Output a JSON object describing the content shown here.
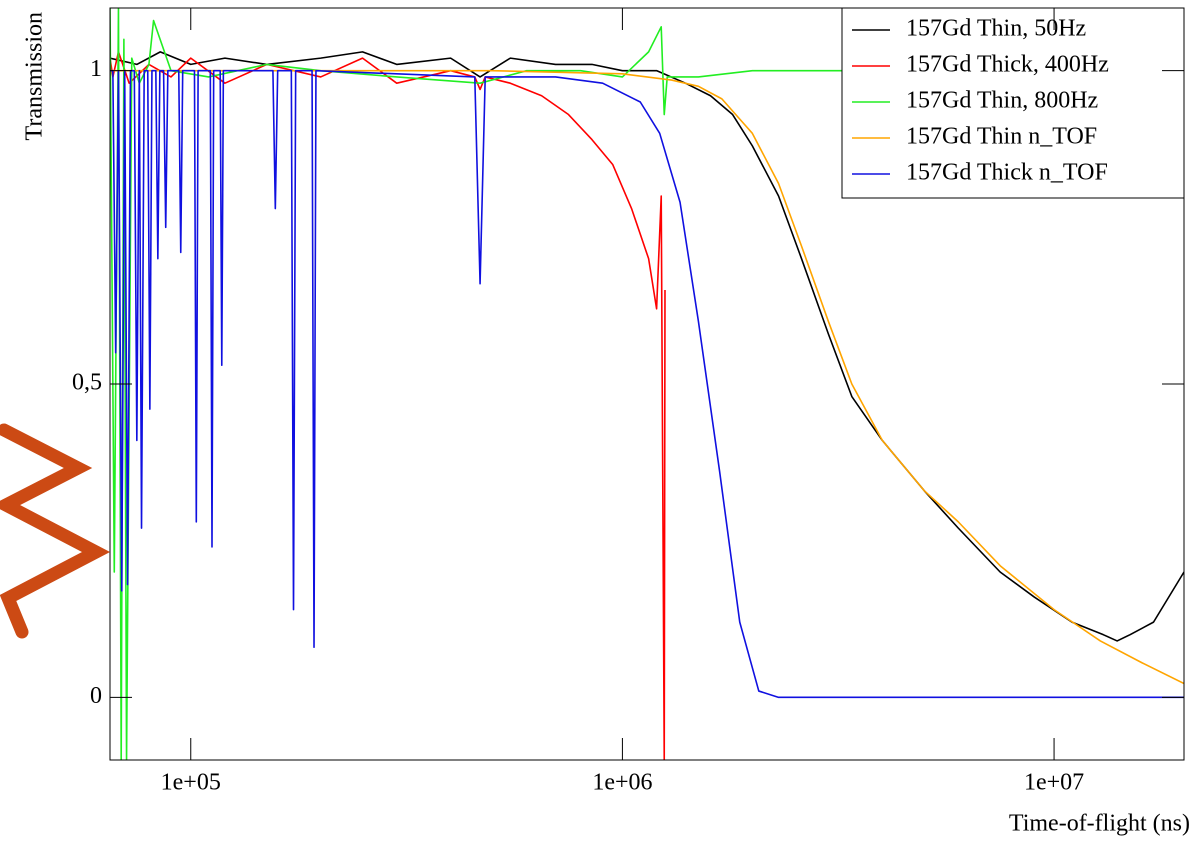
{
  "chart_data": {
    "type": "line",
    "x_label": "Time-of-flight (ns)",
    "y_label": "Transmission",
    "xscale": "log",
    "xlim": [
      65000,
      20000000
    ],
    "ylim": [
      -0.1,
      1.1
    ],
    "xticks": [
      {
        "value": 100000,
        "label": "1e+05"
      },
      {
        "value": 1000000,
        "label": "1e+06"
      },
      {
        "value": 10000000,
        "label": "1e+07"
      }
    ],
    "yticks": [
      0,
      {
        "value": 0.5,
        "label": "0,5"
      },
      1
    ],
    "grid": false,
    "legend": "top-right",
    "series": [
      {
        "name": "157Gd Thin, 50Hz",
        "color": "#000000",
        "x": [
          65000,
          75000,
          85000,
          100000,
          120000,
          150000,
          200000,
          250000,
          300000,
          400000,
          468000,
          550000,
          700000,
          850000,
          1000000,
          1200000,
          1400000,
          1600000,
          1800000,
          2000000,
          2300000,
          2600000,
          3000000,
          3400000,
          4000000,
          5000000,
          6000000,
          7500000,
          9000000,
          11000000,
          13000000,
          14000000,
          15000000,
          17000000,
          20000000
        ],
        "values": [
          1.02,
          1.01,
          1.03,
          1.01,
          1.02,
          1.01,
          1.02,
          1.03,
          1.01,
          1.02,
          0.99,
          1.02,
          1.01,
          1.01,
          1.0,
          1.0,
          0.98,
          0.96,
          0.93,
          0.88,
          0.8,
          0.7,
          0.58,
          0.48,
          0.41,
          0.33,
          0.27,
          0.2,
          0.16,
          0.12,
          0.1,
          0.09,
          0.1,
          0.12,
          0.2
        ]
      },
      {
        "name": "157Gd Thick, 400Hz",
        "color": "#ff0000",
        "x": [
          65000,
          66000,
          68000,
          72000,
          80000,
          90000,
          100000,
          120000,
          150000,
          200000,
          250000,
          300000,
          400000,
          455000,
          468000,
          481000,
          550000,
          650000,
          750000,
          850000,
          950000,
          1050000,
          1150000,
          1200000,
          1230000,
          1250000,
          1255000
        ],
        "values": [
          1.02,
          0.99,
          1.03,
          0.98,
          1.01,
          0.99,
          1.02,
          0.98,
          1.01,
          0.99,
          1.02,
          0.98,
          1.0,
          0.99,
          0.97,
          0.99,
          0.98,
          0.96,
          0.93,
          0.89,
          0.85,
          0.78,
          0.7,
          0.62,
          0.8,
          -0.1,
          0.65
        ]
      },
      {
        "name": "157Gd Thin, 800Hz",
        "color": "#22ee22",
        "x": [
          65000,
          66500,
          68000,
          69000,
          70000,
          71000,
          73000,
          76000,
          80000,
          82000,
          90000,
          110000,
          150000,
          200000,
          300000,
          468000,
          600000,
          800000,
          1000000,
          1150000,
          1230000,
          1250000,
          1270000,
          1500000,
          2000000,
          3300000
        ],
        "values": [
          1.1,
          0.2,
          1.1,
          -0.1,
          1.05,
          -0.1,
          1.02,
          0.98,
          1.01,
          1.08,
          1.0,
          0.99,
          1.01,
          1.0,
          0.99,
          0.98,
          1.0,
          1.0,
          0.99,
          1.03,
          1.07,
          0.93,
          0.99,
          0.99,
          1.0,
          1.0
        ]
      },
      {
        "name": "157Gd Thin n_TOF",
        "color": "#ffa500",
        "x": [
          65000,
          200000,
          500000,
          1000000,
          1300000,
          1500000,
          1700000,
          2000000,
          2300000,
          2600000,
          3000000,
          3400000,
          4000000,
          5000000,
          6000000,
          7500000,
          10000000,
          12800000,
          16000000,
          20000000
        ],
        "values": [
          1.0,
          1.0,
          1.0,
          0.995,
          0.985,
          0.975,
          0.955,
          0.9,
          0.82,
          0.72,
          0.6,
          0.5,
          0.41,
          0.33,
          0.28,
          0.21,
          0.14,
          0.09,
          0.055,
          0.022
        ]
      },
      {
        "name": "157Gd Thick n_TOF",
        "color": "#1010e0",
        "x": [
          65000,
          66000,
          67000,
          68000,
          69200,
          70300,
          71400,
          72500,
          74000,
          75000,
          76000,
          76900,
          78000,
          79500,
          80400,
          81300,
          83000,
          83900,
          84800,
          86500,
          87500,
          88500,
          93800,
          94800,
          95800,
          102000,
          103000,
          104000,
          111000,
          112000,
          113000,
          117000,
          118000,
          119000,
          155000,
          157000,
          159000,
          171000,
          173000,
          175000,
          191000,
          193000,
          195000,
          455000,
          468000,
          481000,
          700000,
          900000,
          1100000,
          1220000,
          1360000,
          1500000,
          1680000,
          1870000,
          2070000,
          2300000,
          20000000
        ],
        "values": [
          1.0,
          1.0,
          0.55,
          1.0,
          0.17,
          1.0,
          0.18,
          1.0,
          1.0,
          0.41,
          1.0,
          0.27,
          1.0,
          1.0,
          0.46,
          1.0,
          1.0,
          0.7,
          1.0,
          1.0,
          0.75,
          1.0,
          1.0,
          0.71,
          1.0,
          1.0,
          0.28,
          1.0,
          1.0,
          0.24,
          1.0,
          1.0,
          0.53,
          1.0,
          1.0,
          0.78,
          1.0,
          1.0,
          0.14,
          1.0,
          1.0,
          0.08,
          1.0,
          0.99,
          0.66,
          0.99,
          0.99,
          0.98,
          0.95,
          0.9,
          0.79,
          0.6,
          0.36,
          0.12,
          0.01,
          0,
          0
        ]
      }
    ]
  }
}
